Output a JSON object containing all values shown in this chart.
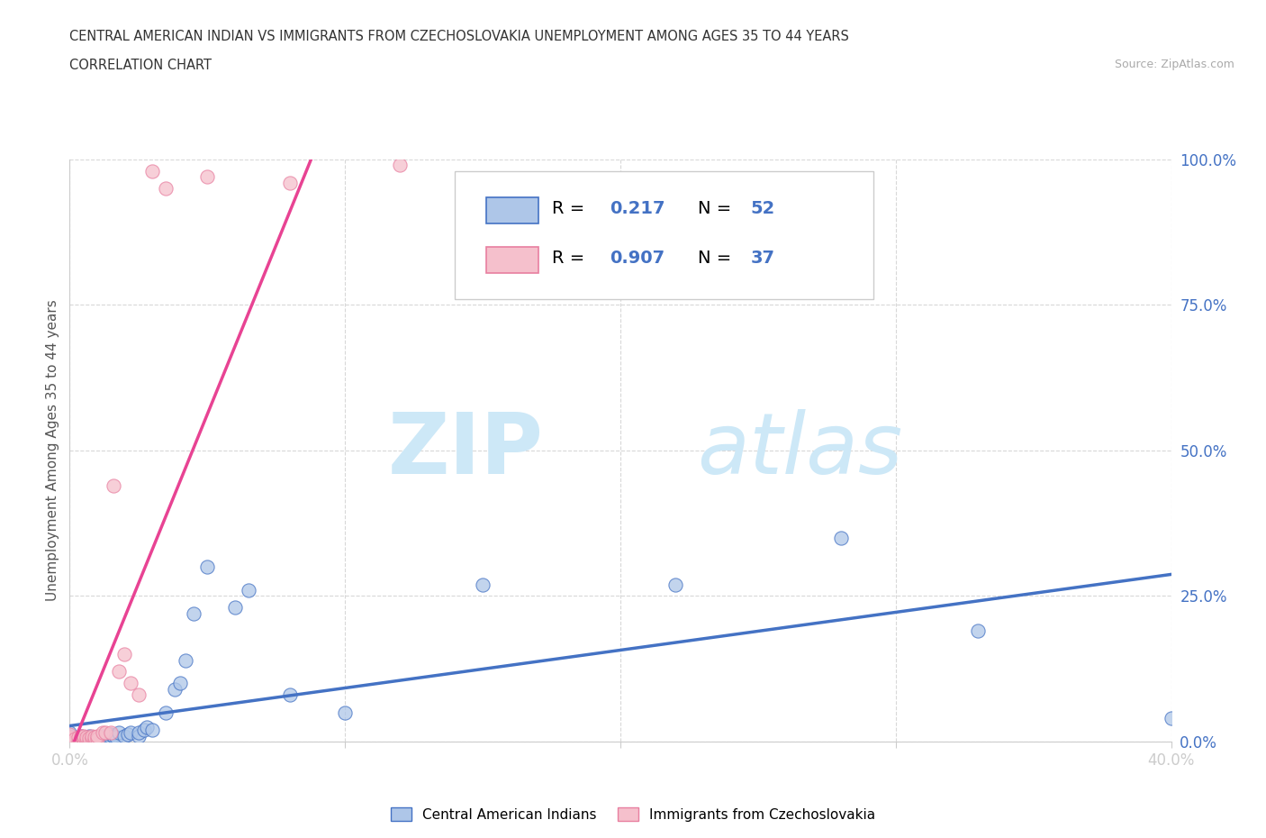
{
  "title_line1": "CENTRAL AMERICAN INDIAN VS IMMIGRANTS FROM CZECHOSLOVAKIA UNEMPLOYMENT AMONG AGES 35 TO 44 YEARS",
  "title_line2": "CORRELATION CHART",
  "source_text": "Source: ZipAtlas.com",
  "ylabel": "Unemployment Among Ages 35 to 44 years",
  "x_min": 0.0,
  "x_max": 0.4,
  "y_min": 0.0,
  "y_max": 1.0,
  "blue_scatter_x": [
    0.0,
    0.0,
    0.0,
    0.0,
    0.0,
    0.003,
    0.003,
    0.004,
    0.005,
    0.005,
    0.005,
    0.006,
    0.007,
    0.007,
    0.008,
    0.008,
    0.009,
    0.009,
    0.01,
    0.01,
    0.012,
    0.012,
    0.013,
    0.014,
    0.015,
    0.015,
    0.016,
    0.017,
    0.018,
    0.02,
    0.021,
    0.022,
    0.025,
    0.025,
    0.027,
    0.028,
    0.03,
    0.035,
    0.038,
    0.04,
    0.042,
    0.045,
    0.05,
    0.06,
    0.065,
    0.08,
    0.1,
    0.15,
    0.22,
    0.28,
    0.33,
    0.4
  ],
  "blue_scatter_y": [
    0.0,
    0.0,
    0.005,
    0.01,
    0.015,
    0.0,
    0.005,
    0.01,
    0.0,
    0.005,
    0.008,
    0.0,
    0.005,
    0.01,
    0.0,
    0.005,
    0.005,
    0.008,
    0.0,
    0.005,
    0.005,
    0.01,
    0.005,
    0.01,
    0.008,
    0.012,
    0.01,
    0.008,
    0.015,
    0.01,
    0.012,
    0.015,
    0.01,
    0.015,
    0.02,
    0.025,
    0.02,
    0.05,
    0.09,
    0.1,
    0.14,
    0.22,
    0.3,
    0.23,
    0.26,
    0.08,
    0.05,
    0.27,
    0.27,
    0.35,
    0.19,
    0.04
  ],
  "pink_scatter_x": [
    0.0,
    0.0,
    0.0,
    0.0,
    0.0,
    0.002,
    0.002,
    0.003,
    0.003,
    0.004,
    0.004,
    0.005,
    0.005,
    0.005,
    0.006,
    0.006,
    0.007,
    0.007,
    0.008,
    0.008,
    0.009,
    0.009,
    0.01,
    0.01,
    0.012,
    0.013,
    0.015,
    0.016,
    0.018,
    0.02,
    0.022,
    0.025,
    0.03,
    0.035,
    0.05,
    0.08,
    0.12
  ],
  "pink_scatter_y": [
    0.0,
    0.003,
    0.005,
    0.008,
    0.012,
    0.0,
    0.005,
    0.0,
    0.008,
    0.003,
    0.01,
    0.0,
    0.005,
    0.01,
    0.003,
    0.008,
    0.0,
    0.006,
    0.005,
    0.01,
    0.003,
    0.008,
    0.005,
    0.01,
    0.015,
    0.015,
    0.015,
    0.44,
    0.12,
    0.15,
    0.1,
    0.08,
    0.98,
    0.95,
    0.97,
    0.96,
    0.99
  ],
  "blue_color": "#aec6e8",
  "pink_color": "#f5c0cc",
  "blue_edge_color": "#4472c4",
  "pink_edge_color": "#e87fa0",
  "blue_line_color": "#4472c4",
  "pink_line_color": "#e84393",
  "blue_R": 0.217,
  "blue_N": 52,
  "pink_R": 0.907,
  "pink_N": 37,
  "watermark_zip": "ZIP",
  "watermark_atlas": "atlas",
  "watermark_color": "#cde8f7",
  "legend_label_blue": "Central American Indians",
  "legend_label_pink": "Immigrants from Czechoslovakia",
  "background_color": "#ffffff",
  "grid_color": "#d8d8d8"
}
